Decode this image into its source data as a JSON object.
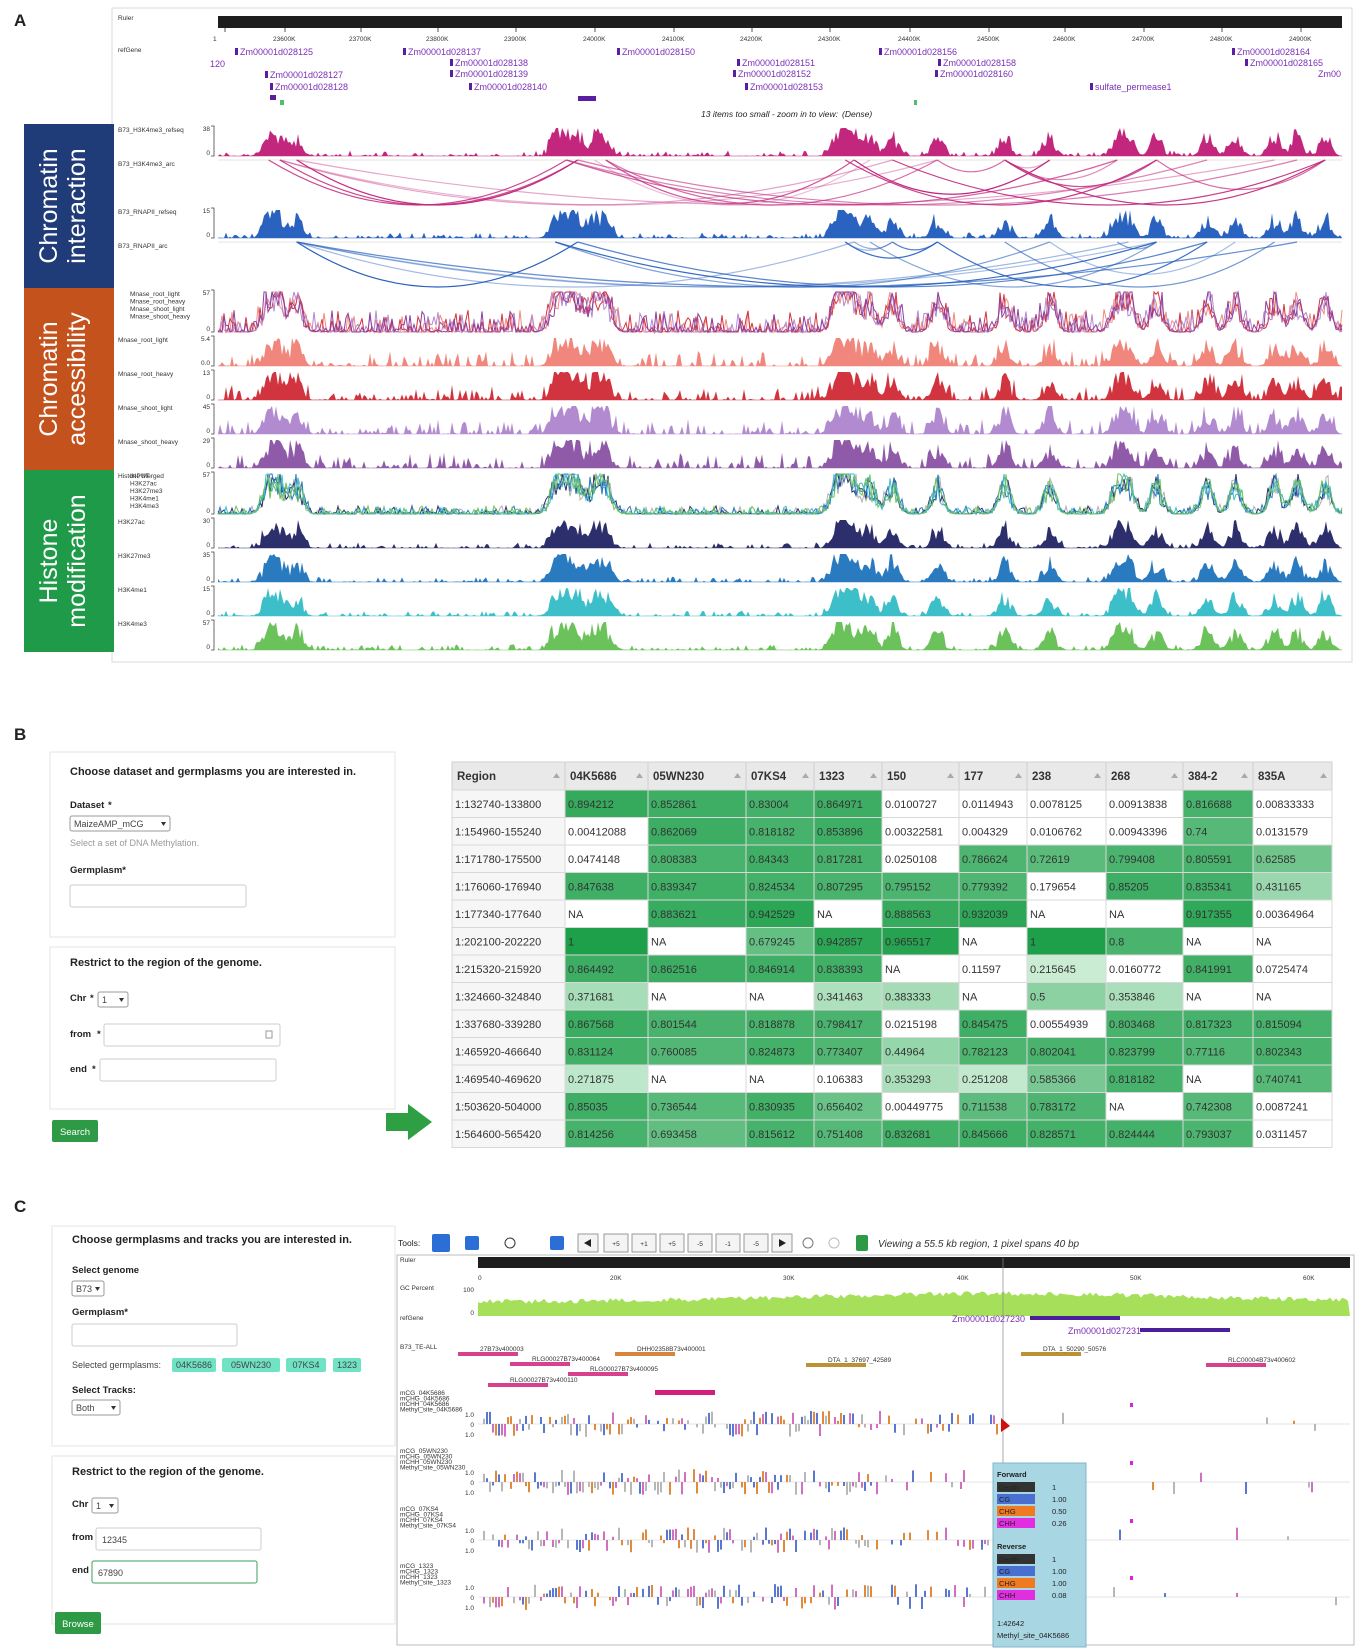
{
  "figure_labels": [
    "A",
    "B",
    "C"
  ],
  "panel_a": {
    "ruler": {
      "name": "Ruler",
      "ticks": [
        "1",
        "23600K",
        "23700K",
        "23800K",
        "23900K",
        "24000K",
        "24100K",
        "24200K",
        "24300K",
        "24400K",
        "24500K",
        "24600K",
        "24700K",
        "24800K",
        "24900K"
      ]
    },
    "refgene": {
      "name": "refGene",
      "genes": [
        "Zm00001d028125",
        "120",
        "Zm00001d028127",
        "Zm00001d028128",
        "Zm00001d028137",
        "Zm00001d028138",
        "Zm00001d028139",
        "Zm00001d028140",
        "Zm00001d028150",
        "Zm00001d028151",
        "Zm00001d028152",
        "Zm00001d028153",
        "Zm00001d028156",
        "Zm00001d028158",
        "Zm00001d028160",
        "sulfate_permease1",
        "Zm00001d028164",
        "Zm00001d028165",
        "Zm00"
      ],
      "note": "13 items too small - zoom in to view:",
      "note_link": "(Dense)"
    },
    "sections": [
      {
        "title": [
          "Chromatin",
          "interaction"
        ],
        "color": "#1f3b78",
        "tracks": [
          {
            "name": "B73_H3K4me3_refseq",
            "style": "bars",
            "color": "#c2277d",
            "scale": [
              "38",
              "0"
            ]
          },
          {
            "name": "B73_H3K4me3_arc",
            "style": "arcs",
            "color": "#c2277d"
          },
          {
            "name": "B73_RNAPII_refseq",
            "style": "bars",
            "color": "#2a62bf",
            "scale": [
              "15",
              "0"
            ]
          },
          {
            "name": "B73_RNAPII_arc",
            "style": "arcs",
            "color": "#2a62bf"
          }
        ]
      },
      {
        "title": [
          "Chromatin",
          "accessibility"
        ],
        "color": "#c4521c",
        "tracks": [
          {
            "style": "overlay",
            "scale": [
              "57",
              "0"
            ],
            "legend": [
              {
                "name": "Mnase_root_light",
                "color": "#f08a80"
              },
              {
                "name": "Mnase_root_heavy",
                "color": "#d2343f"
              },
              {
                "name": "Mnase_shoot_light",
                "color": "#b28ad0"
              },
              {
                "name": "Mnase_shoot_heavy",
                "color": "#8f3f9e"
              }
            ]
          },
          {
            "name": "Mnase_root_light",
            "style": "bars",
            "color": "#f0867c",
            "scale": [
              "5.4",
              "0.0"
            ]
          },
          {
            "name": "Mnase_root_heavy",
            "style": "bars",
            "color": "#d2343f",
            "scale": [
              "13",
              "0"
            ]
          },
          {
            "name": "Mnase_shoot_light",
            "style": "bars",
            "color": "#b28ad0",
            "scale": [
              "45",
              "0"
            ]
          },
          {
            "name": "Mnase_shoot_heavy",
            "style": "bars",
            "color": "#8f5aa8",
            "scale": [
              "29",
              "0"
            ]
          }
        ]
      },
      {
        "title": [
          "Histone",
          "modification"
        ],
        "color": "#1f9a48",
        "tracks": [
          {
            "name": "Histone Merged",
            "style": "overlay",
            "scale": [
              "57",
              "0"
            ],
            "legend": [
              {
                "name": "INPUT",
                "color": "#b0b0b0"
              },
              {
                "name": "H3K27ac",
                "color": "#2c2f6b"
              },
              {
                "name": "H3K27me3",
                "color": "#2a7ac0"
              },
              {
                "name": "H3K4me1",
                "color": "#3dbfc9"
              },
              {
                "name": "H3K4me3",
                "color": "#6cc25a"
              }
            ]
          },
          {
            "name": "H3K27ac",
            "style": "bars",
            "color": "#2c2f6b",
            "scale": [
              "30",
              "0"
            ]
          },
          {
            "name": "H3K27me3",
            "style": "bars",
            "color": "#2a7ac0",
            "scale": [
              "35",
              "0"
            ]
          },
          {
            "name": "H3K4me1",
            "style": "bars",
            "color": "#3dbfc9",
            "scale": [
              "15",
              "0"
            ]
          },
          {
            "name": "H3K4me3",
            "style": "bars",
            "color": "#6cc25a",
            "scale": [
              "57",
              "0"
            ]
          }
        ]
      }
    ]
  },
  "panel_b": {
    "form": {
      "title": "Choose dataset and germplasms you are interested in.",
      "dataset_label": "Dataset",
      "required": "*",
      "dataset_value": "MaizeAMP_mCG",
      "dataset_help": "Select a set of DNA Methylation.",
      "germplasm_label": "Germplasm*"
    },
    "region_form": {
      "title": "Restrict to the region of the genome.",
      "chr_label": "Chr",
      "chr_value": "1",
      "from_label": "from",
      "end_label": "end",
      "button": "Search"
    },
    "table": {
      "columns": [
        "Region",
        "04K5686",
        "05WN230",
        "07KS4",
        "1323",
        "150",
        "177",
        "238",
        "268",
        "384-2",
        "835A"
      ],
      "rows": [
        [
          "1:132740-133800",
          "0.894212",
          "0.852861",
          "0.83004",
          "0.864971",
          "0.0100727",
          "0.0114943",
          "0.0078125",
          "0.00913838",
          "0.816688",
          "0.00833333"
        ],
        [
          "1:154960-155240",
          "0.00412088",
          "0.862069",
          "0.818182",
          "0.853896",
          "0.00322581",
          "0.004329",
          "0.0106762",
          "0.00943396",
          "0.74",
          "0.0131579"
        ],
        [
          "1:171780-175500",
          "0.0474148",
          "0.808383",
          "0.84343",
          "0.817281",
          "0.0250108",
          "0.786624",
          "0.72619",
          "0.799408",
          "0.805591",
          "0.62585"
        ],
        [
          "1:176060-176940",
          "0.847638",
          "0.839347",
          "0.824534",
          "0.807295",
          "0.795152",
          "0.779392",
          "0.179654",
          "0.85205",
          "0.835341",
          "0.431165"
        ],
        [
          "1:177340-177640",
          "NA",
          "0.883621",
          "0.942529",
          "NA",
          "0.888563",
          "0.932039",
          "NA",
          "NA",
          "0.917355",
          "0.00364964"
        ],
        [
          "1:202100-202220",
          "1",
          "NA",
          "0.679245",
          "0.942857",
          "0.965517",
          "NA",
          "1",
          "0.8",
          "NA",
          "NA"
        ],
        [
          "1:215320-215920",
          "0.864492",
          "0.862516",
          "0.846914",
          "0.838393",
          "NA",
          "0.11597",
          "0.215645",
          "0.0160772",
          "0.841991",
          "0.0725474"
        ],
        [
          "1:324660-324840",
          "0.371681",
          "NA",
          "NA",
          "0.341463",
          "0.383333",
          "NA",
          "0.5",
          "0.353846",
          "NA",
          "NA"
        ],
        [
          "1:337680-339280",
          "0.867568",
          "0.801544",
          "0.818878",
          "0.798417",
          "0.0215198",
          "0.845475",
          "0.00554939",
          "0.803468",
          "0.817323",
          "0.815094"
        ],
        [
          "1:465920-466640",
          "0.831124",
          "0.760085",
          "0.824873",
          "0.773407",
          "0.44964",
          "0.782123",
          "0.802041",
          "0.823799",
          "0.77116",
          "0.802343"
        ],
        [
          "1:469540-469620",
          "0.271875",
          "NA",
          "NA",
          "0.106383",
          "0.353293",
          "0.251208",
          "0.585366",
          "0.818182",
          "NA",
          "0.740741"
        ],
        [
          "1:503620-504000",
          "0.85035",
          "0.736544",
          "0.830935",
          "0.656402",
          "0.00449775",
          "0.711538",
          "0.783172",
          "NA",
          "0.742308",
          "0.0087241"
        ],
        [
          "1:564600-565420",
          "0.814256",
          "0.693458",
          "0.815612",
          "0.751408",
          "0.832681",
          "0.845666",
          "0.828571",
          "0.824444",
          "0.793037",
          "0.0311457"
        ]
      ]
    }
  },
  "panel_c": {
    "form": {
      "title": "Choose germplasms and tracks you are interested in.",
      "genome_label": "Select genome",
      "genome_value": "B73",
      "germplasm_label": "Germplasm*",
      "selected_label": "Selected germplasms:",
      "selected": [
        "04K5686",
        "05WN230",
        "07KS4",
        "1323"
      ],
      "tracks_label": "Select Tracks:",
      "tracks_value": "Both"
    },
    "region_form": {
      "title": "Restrict to the region of the genome.",
      "chr_label": "Chr",
      "chr_value": "1",
      "from_label": "from",
      "from_value": "12345",
      "end_label": "end",
      "end_value": "67890",
      "button": "Browse"
    },
    "browser": {
      "tools_label": "Tools:",
      "buttons": [
        "+5",
        "+1",
        "+5",
        "-5",
        "-1",
        "-5"
      ],
      "status": "Viewing a 55.5 kb region, 1 pixel spans 40 bp",
      "ruler": {
        "name": "Ruler",
        "ticks": [
          "0",
          "20K",
          "30K",
          "40K",
          "50K",
          "60K"
        ]
      },
      "gc": {
        "name": "GC Percent",
        "scale": [
          "100",
          "0"
        ]
      },
      "refgene": {
        "name": "refGene",
        "genes": [
          "Zm00001d027230",
          "Zm00001d027231"
        ]
      },
      "te": {
        "name": "B73_TE-ALL",
        "items": [
          {
            "name": "27B73v400003",
            "color": "#d0207a"
          },
          {
            "name": "RLG00027B73v400064",
            "color": "#d0207a"
          },
          {
            "name": "DHH02358B73v400001",
            "color": "#d0701c"
          },
          {
            "name": "DTA_1_37697_42589",
            "color": "#b08010"
          },
          {
            "name": "DTA_1_50290_50576",
            "color": "#b08010"
          },
          {
            "name": "RLC00004B73v400602",
            "color": "#d0207a"
          },
          {
            "name": "RLG00027B73v400095",
            "color": "#d0207a"
          },
          {
            "name": "RLG00027B73v400110",
            "color": "#d0207a"
          }
        ]
      },
      "methylation": {
        "axis": [
          "1.0",
          "0",
          "1.0"
        ],
        "groups": [
          {
            "tracks": [
              "mCG_04K5686",
              "mCHG_04K5686",
              "mCHH_04K5686",
              "Methyl_site_04K5686"
            ]
          },
          {
            "tracks": [
              "mCG_05WN230",
              "mCHG_05WN230",
              "mCHH_05WN230",
              "Methyl_site_05WN230"
            ]
          },
          {
            "tracks": [
              "mCG_07KS4",
              "mCHG_07KS4",
              "mCHH_07KS4",
              "Methyl_site_07KS4"
            ]
          },
          {
            "tracks": [
              "mCG_1323",
              "mCHG_1323",
              "mCHH_1323",
              "Methyl_site_1323"
            ]
          }
        ]
      },
      "tooltip": {
        "forward_title": "Forward",
        "forward": [
          {
            "name": "Depth",
            "value": "1",
            "color": "#333333"
          },
          {
            "name": "CG",
            "value": "1.00",
            "color": "#4a6fd0"
          },
          {
            "name": "CHG",
            "value": "0.50",
            "color": "#f07a22"
          },
          {
            "name": "CHH",
            "value": "0.26",
            "color": "#e02ee0"
          }
        ],
        "reverse_title": "Reverse",
        "reverse": [
          {
            "name": "Depth",
            "value": "1",
            "color": "#333333"
          },
          {
            "name": "CG",
            "value": "1.00",
            "color": "#4a6fd0"
          },
          {
            "name": "CHG",
            "value": "1.00",
            "color": "#f07a22"
          },
          {
            "name": "CHH",
            "value": "0.08",
            "color": "#e02ee0"
          }
        ],
        "position": "1:42642",
        "track": "Methyl_site_04K5686"
      }
    }
  }
}
